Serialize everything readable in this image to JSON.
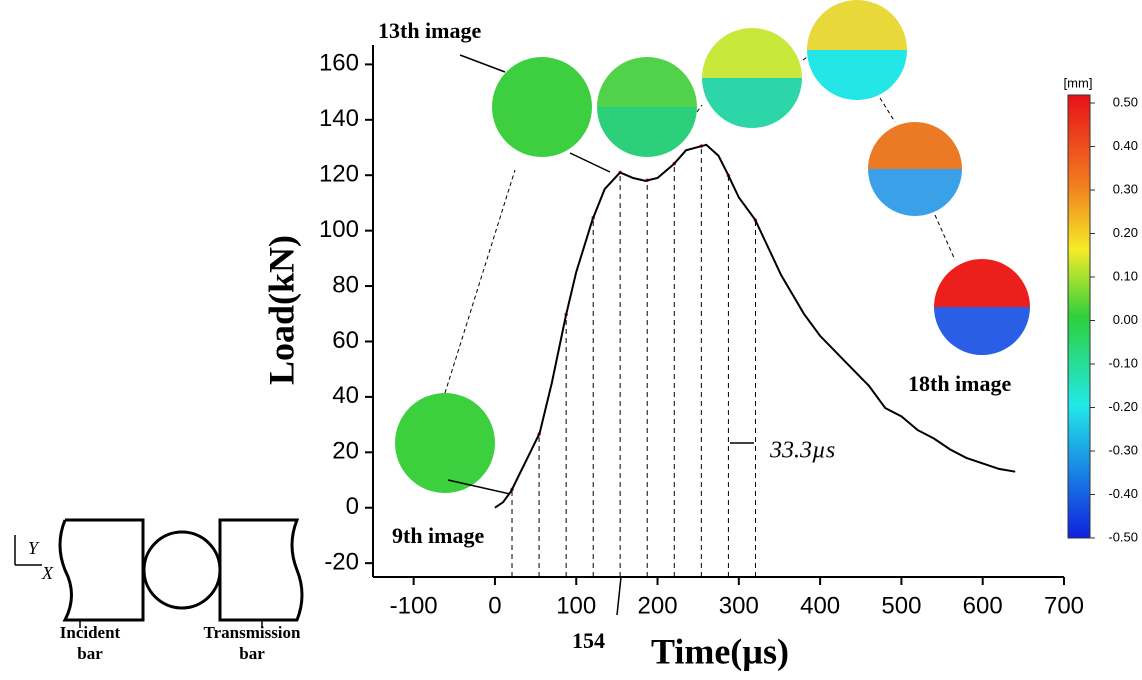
{
  "chart_data": {
    "type": "line",
    "x_label": "Time(µs)",
    "y_label": "Load(kN)",
    "x": [
      0,
      10,
      20,
      30,
      40,
      55,
      70,
      87,
      100,
      120,
      135,
      154,
      170,
      185,
      200,
      220,
      235,
      260,
      275,
      287,
      300,
      320,
      352,
      380,
      400,
      420,
      440,
      460,
      480,
      500,
      520,
      540,
      560,
      580,
      600,
      620,
      640
    ],
    "values": [
      0,
      2,
      6,
      12,
      18,
      27,
      45,
      69,
      85,
      104,
      115,
      121,
      119,
      118,
      119,
      124,
      129,
      131,
      127,
      120,
      112,
      104,
      84,
      70,
      62,
      56,
      50,
      44,
      36,
      33,
      28,
      25,
      21,
      18,
      16,
      14,
      13
    ],
    "color": "#000000",
    "frame_times": [
      21,
      54.3,
      87.6,
      120.9,
      154,
      187.3,
      220.6,
      253.9,
      287.2,
      320.5
    ],
    "xlim": [
      -150,
      700
    ],
    "xticks": [
      -100,
      0,
      100,
      200,
      300,
      400,
      500,
      600,
      700
    ],
    "ylim": [
      -25,
      167
    ],
    "yticks": [
      -20,
      0,
      20,
      40,
      60,
      80,
      100,
      120,
      140,
      160
    ],
    "annotations": {
      "first": "9th image",
      "middle": "13th image",
      "last": "18th image",
      "time_mark": "154",
      "interval": "33.3µs"
    },
    "colorbar": {
      "unit": "[mm]",
      "ticks": [
        {
          "value": 0.5,
          "label": "0.50"
        },
        {
          "value": 0.4,
          "label": "0.40"
        },
        {
          "value": 0.3,
          "label": "0.30"
        },
        {
          "value": 0.2,
          "label": "0.20"
        },
        {
          "value": 0.1,
          "label": "0.10"
        },
        {
          "value": 0,
          "label": "0.00"
        },
        {
          "value": -0.1,
          "label": "-0.10"
        },
        {
          "value": -0.2,
          "label": "-0.20"
        },
        {
          "value": -0.3,
          "label": "-0.30"
        },
        {
          "value": -0.4,
          "label": "-0.40"
        },
        {
          "value": -0.5,
          "label": "-0.50"
        }
      ],
      "lim": [
        -0.5,
        0.5
      ]
    },
    "diagram": {
      "y_axis": "Y",
      "x_axis": "X",
      "incident_1": "Incident",
      "incident_2": "bar",
      "transmission_1": "Transmission",
      "transmission_2": "bar"
    }
  }
}
